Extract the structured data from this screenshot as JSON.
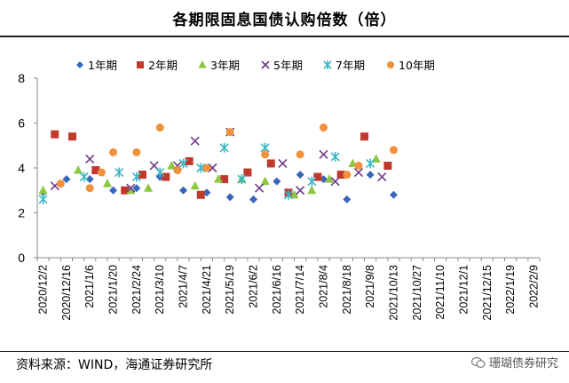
{
  "title": "各期限固息国债认购倍数（倍）",
  "source": "资料来源：WIND，海通证券研究所",
  "watermark": "珊瑚债券研究",
  "chart_data": {
    "type": "scatter",
    "title": "各期限固息国债认购倍数（倍）",
    "xlabel": "",
    "ylabel": "",
    "ylim": [
      0,
      8
    ],
    "yticks": [
      0,
      2,
      4,
      6,
      8
    ],
    "grid": false,
    "legend_position": "top",
    "x_tick_labels": [
      "2020/12/2",
      "2020/12/16",
      "2021/1/6",
      "2021/1/20",
      "2021/2/24",
      "2021/3/10",
      "2021/4/7",
      "2021/4/21",
      "2021/5/19",
      "2021/6/2",
      "2021/6/16",
      "2021/7/14",
      "2021/8/4",
      "2021/8/18",
      "2021/9/8",
      "2021/10/13",
      "2021/10/27",
      "2021/11/10",
      "2021/12/1",
      "2021/12/15",
      "2022/1/19",
      "2022/2/9"
    ],
    "num_slots": 43,
    "series": [
      {
        "name": "1年期",
        "color": "#3866b8",
        "marker": "diamond",
        "points": [
          [
            0,
            2.9
          ],
          [
            2,
            3.5
          ],
          [
            4,
            3.5
          ],
          [
            6,
            3.0
          ],
          [
            8,
            3.1
          ],
          [
            10,
            3.6
          ],
          [
            12,
            3.0
          ],
          [
            14,
            2.9
          ],
          [
            16,
            2.7
          ],
          [
            18,
            2.6
          ],
          [
            20,
            3.4
          ],
          [
            22,
            3.7
          ],
          [
            24,
            3.5
          ],
          [
            26,
            2.6
          ],
          [
            28,
            3.7
          ],
          [
            30,
            2.8
          ]
        ]
      },
      {
        "name": "2年期",
        "color": "#c0392b",
        "marker": "square",
        "points": [
          [
            1,
            5.5
          ],
          [
            2.5,
            5.4
          ],
          [
            4.5,
            3.9
          ],
          [
            7,
            3.0
          ],
          [
            8.5,
            3.7
          ],
          [
            10.5,
            3.6
          ],
          [
            12.5,
            4.3
          ],
          [
            13.5,
            2.8
          ],
          [
            15.5,
            3.5
          ],
          [
            17.5,
            3.8
          ],
          [
            19.5,
            4.2
          ],
          [
            21,
            2.9
          ],
          [
            23.5,
            3.6
          ],
          [
            25.5,
            3.7
          ],
          [
            27.5,
            5.4
          ],
          [
            29.5,
            4.1
          ]
        ]
      },
      {
        "name": "3年期",
        "color": "#8dc63f",
        "marker": "triangle",
        "points": [
          [
            0,
            3.0
          ],
          [
            3,
            3.9
          ],
          [
            5.5,
            3.3
          ],
          [
            7.5,
            3.0
          ],
          [
            9,
            3.1
          ],
          [
            11,
            4.1
          ],
          [
            13,
            3.2
          ],
          [
            15,
            3.5
          ],
          [
            17,
            3.5
          ],
          [
            19,
            3.4
          ],
          [
            21.5,
            2.8
          ],
          [
            23,
            3.0
          ],
          [
            24.5,
            3.5
          ],
          [
            26.5,
            4.2
          ],
          [
            28.5,
            4.4
          ]
        ]
      },
      {
        "name": "5年期",
        "color": "#6f3c8a",
        "marker": "cross",
        "points": [
          [
            1,
            3.2
          ],
          [
            4,
            4.4
          ],
          [
            7.5,
            3.1
          ],
          [
            9.5,
            4.1
          ],
          [
            11.5,
            4.1
          ],
          [
            13,
            5.2
          ],
          [
            14.5,
            4.0
          ],
          [
            16,
            5.6
          ],
          [
            18.5,
            3.1
          ],
          [
            20.5,
            4.2
          ],
          [
            22,
            3.0
          ],
          [
            24,
            4.6
          ],
          [
            25,
            3.4
          ],
          [
            27,
            3.8
          ],
          [
            29,
            3.6
          ]
        ]
      },
      {
        "name": "7年期",
        "color": "#3ab7c5",
        "marker": "star",
        "points": [
          [
            0,
            2.6
          ],
          [
            3.5,
            3.6
          ],
          [
            6.5,
            3.8
          ],
          [
            8,
            3.6
          ],
          [
            10,
            3.8
          ],
          [
            12,
            4.2
          ],
          [
            13.5,
            4.0
          ],
          [
            15.5,
            4.9
          ],
          [
            17,
            3.5
          ],
          [
            19,
            4.9
          ],
          [
            21,
            2.8
          ],
          [
            23,
            3.4
          ],
          [
            25,
            4.5
          ],
          [
            28,
            4.2
          ]
        ]
      },
      {
        "name": "10年期",
        "color": "#f0913b",
        "marker": "circle",
        "points": [
          [
            1.5,
            3.3
          ],
          [
            4,
            3.1
          ],
          [
            5,
            3.8
          ],
          [
            6,
            4.7
          ],
          [
            8,
            4.7
          ],
          [
            10,
            5.8
          ],
          [
            11.5,
            3.9
          ],
          [
            14,
            4.0
          ],
          [
            16,
            5.6
          ],
          [
            19,
            4.6
          ],
          [
            22,
            4.6
          ],
          [
            24,
            5.8
          ],
          [
            26,
            3.7
          ],
          [
            27,
            4.1
          ],
          [
            30,
            4.8
          ]
        ]
      }
    ]
  }
}
